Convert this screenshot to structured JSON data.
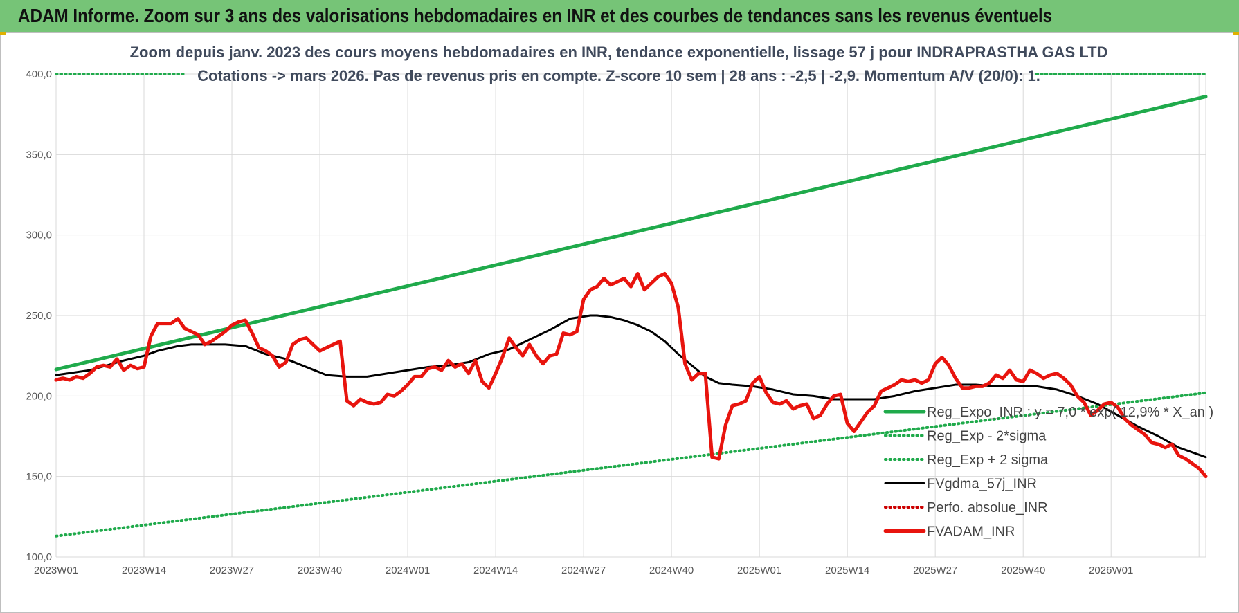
{
  "header": {
    "title": "ADAM Informe. Zoom sur 3 ans des valorisations hebdomadaires en INR et des courbes de tendances sans les revenus éventuels"
  },
  "chart_data": {
    "type": "line",
    "subtitle_lines": [
      "Zoom depuis janv. 2023 des cours moyens hebdomadaires en INR, tendance exponentielle, lissage 57 j pour INDRAPRASTHA GAS LTD",
      "Cotations -> mars 2026. Pas de revenus pris en compte. Z-score 10 sem | 28 ans : -2,5 | -2,9. Momentum A/V (20/0): 1."
    ],
    "ylim": [
      100,
      400
    ],
    "y_ticks": [
      "100,0",
      "150,0",
      "200,0",
      "250,0",
      "300,0",
      "350,0",
      "400,0"
    ],
    "x_ticks": [
      "2023W01",
      "2023W14",
      "2023W27",
      "2023W40",
      "2024W01",
      "2024W14",
      "2024W27",
      "2024W40",
      "2025W01",
      "2025W14",
      "2025W27",
      "2025W40",
      "2026W01"
    ],
    "grid": true,
    "legend_position": "right",
    "series": [
      {
        "name": "Reg_Expo_INR : y = 7,0 * exp( 12,9% *  X_an )",
        "color": "#1faa4b",
        "style": "solid-thick",
        "x": [
          0,
          170
        ],
        "values": [
          216.5,
          386
        ]
      },
      {
        "name": "Reg_Exp - 2*sigma",
        "color": "#1faa4b",
        "style": "dotted",
        "x": [
          0,
          170
        ],
        "values": [
          113,
          202
        ]
      },
      {
        "name": "Reg_Exp + 2 sigma",
        "color": "#1faa4b",
        "style": "dotted",
        "x": [
          0,
          19,
          145,
          170
        ],
        "values": [
          400,
          400,
          400,
          400
        ]
      },
      {
        "name": "FVgdma_57j_INR",
        "color": "#000000",
        "style": "solid",
        "x": [
          0,
          5,
          10,
          13,
          15,
          18,
          20,
          22,
          25,
          28,
          31,
          34,
          37,
          40,
          43,
          46,
          49,
          52,
          55,
          58,
          61,
          64,
          67,
          70,
          73,
          76,
          79,
          80,
          82,
          84,
          86,
          88,
          90,
          92,
          94,
          96,
          98,
          100,
          103,
          106,
          109,
          112,
          115,
          118,
          121,
          124,
          127,
          130,
          133,
          136,
          139,
          142,
          145,
          148,
          151,
          154,
          157,
          160,
          163,
          166,
          170
        ],
        "values": [
          213,
          216,
          222,
          225,
          228,
          231,
          232,
          232,
          232,
          231,
          226,
          223,
          218,
          213,
          212,
          212,
          214,
          216,
          218,
          219,
          221,
          226,
          229,
          235,
          241,
          248,
          250,
          250,
          249,
          247,
          244,
          240,
          234,
          226,
          219,
          212,
          208,
          207,
          206,
          204,
          201,
          200,
          198,
          198,
          198,
          200,
          203,
          205,
          207,
          207,
          206,
          206,
          206,
          204,
          200,
          195,
          188,
          181,
          175,
          168,
          162
        ]
      },
      {
        "name": "Perfo. absolue_INR",
        "color": "#cc0000",
        "style": "dotted",
        "x": [],
        "values": []
      },
      {
        "name": "FVADAM_INR",
        "color": "#e8140e",
        "style": "solid-thick",
        "x": [
          0,
          1,
          2,
          3,
          4,
          5,
          6,
          7,
          8,
          9,
          10,
          11,
          12,
          13,
          14,
          15,
          16,
          17,
          18,
          19,
          20,
          21,
          22,
          23,
          24,
          25,
          26,
          27,
          28,
          29,
          30,
          31,
          32,
          33,
          34,
          35,
          36,
          37,
          38,
          39,
          40,
          41,
          42,
          43,
          44,
          45,
          46,
          47,
          48,
          49,
          50,
          51,
          52,
          53,
          54,
          55,
          56,
          57,
          58,
          59,
          60,
          61,
          62,
          63,
          64,
          65,
          66,
          67,
          68,
          69,
          70,
          71,
          72,
          73,
          74,
          75,
          76,
          77,
          78,
          79,
          80,
          81,
          82,
          83,
          84,
          85,
          86,
          87,
          88,
          89,
          90,
          91,
          92,
          93,
          94,
          95,
          96,
          97,
          98,
          99,
          100,
          101,
          102,
          103,
          104,
          105,
          106,
          107,
          108,
          109,
          110,
          111,
          112,
          113,
          114,
          115,
          116,
          117,
          118,
          119,
          120,
          121,
          122,
          123,
          124,
          125,
          126,
          127,
          128,
          129,
          130,
          131,
          132,
          133,
          134,
          135,
          136,
          137,
          138,
          139,
          140,
          141,
          142,
          143,
          144,
          145,
          146,
          147,
          148,
          149,
          150,
          151,
          152,
          153,
          154,
          155,
          156,
          157,
          158,
          159,
          160,
          161,
          162,
          163,
          164,
          165,
          166,
          167,
          168,
          169,
          170
        ],
        "values": [
          210,
          211,
          210,
          212,
          211,
          214,
          218,
          219,
          218,
          223,
          216,
          219,
          217,
          218,
          237,
          245,
          245,
          245,
          248,
          242,
          240,
          238,
          232,
          234,
          237,
          240,
          244,
          246,
          247,
          239,
          230,
          228,
          225,
          218,
          221,
          232,
          235,
          236,
          232,
          228,
          230,
          232,
          234,
          197,
          194,
          198,
          196,
          195,
          196,
          201,
          200,
          203,
          207,
          212,
          212,
          217,
          218,
          216,
          222,
          218,
          220,
          214,
          222,
          209,
          205,
          214,
          224,
          236,
          230,
          225,
          232,
          225,
          220,
          225,
          226,
          239,
          238,
          240,
          260,
          266,
          268,
          273,
          269,
          271,
          273,
          268,
          276,
          266,
          270,
          274,
          276,
          270,
          255,
          220,
          210,
          214,
          214,
          162,
          161,
          182,
          194,
          195,
          197,
          208,
          212,
          202,
          196,
          195,
          197,
          192,
          194,
          195,
          186,
          188,
          195,
          200,
          201,
          183,
          178,
          184,
          190,
          194,
          203,
          205,
          207,
          210,
          209,
          210,
          208,
          210,
          220,
          224,
          219,
          211,
          205,
          205,
          206,
          206,
          208,
          213,
          211,
          216,
          210,
          209,
          216,
          214,
          211,
          213,
          214,
          211,
          207,
          200,
          196,
          188,
          191,
          195,
          196,
          193,
          186,
          182,
          179,
          176,
          171,
          170,
          168,
          170,
          163,
          161,
          158,
          155,
          150
        ]
      }
    ]
  }
}
